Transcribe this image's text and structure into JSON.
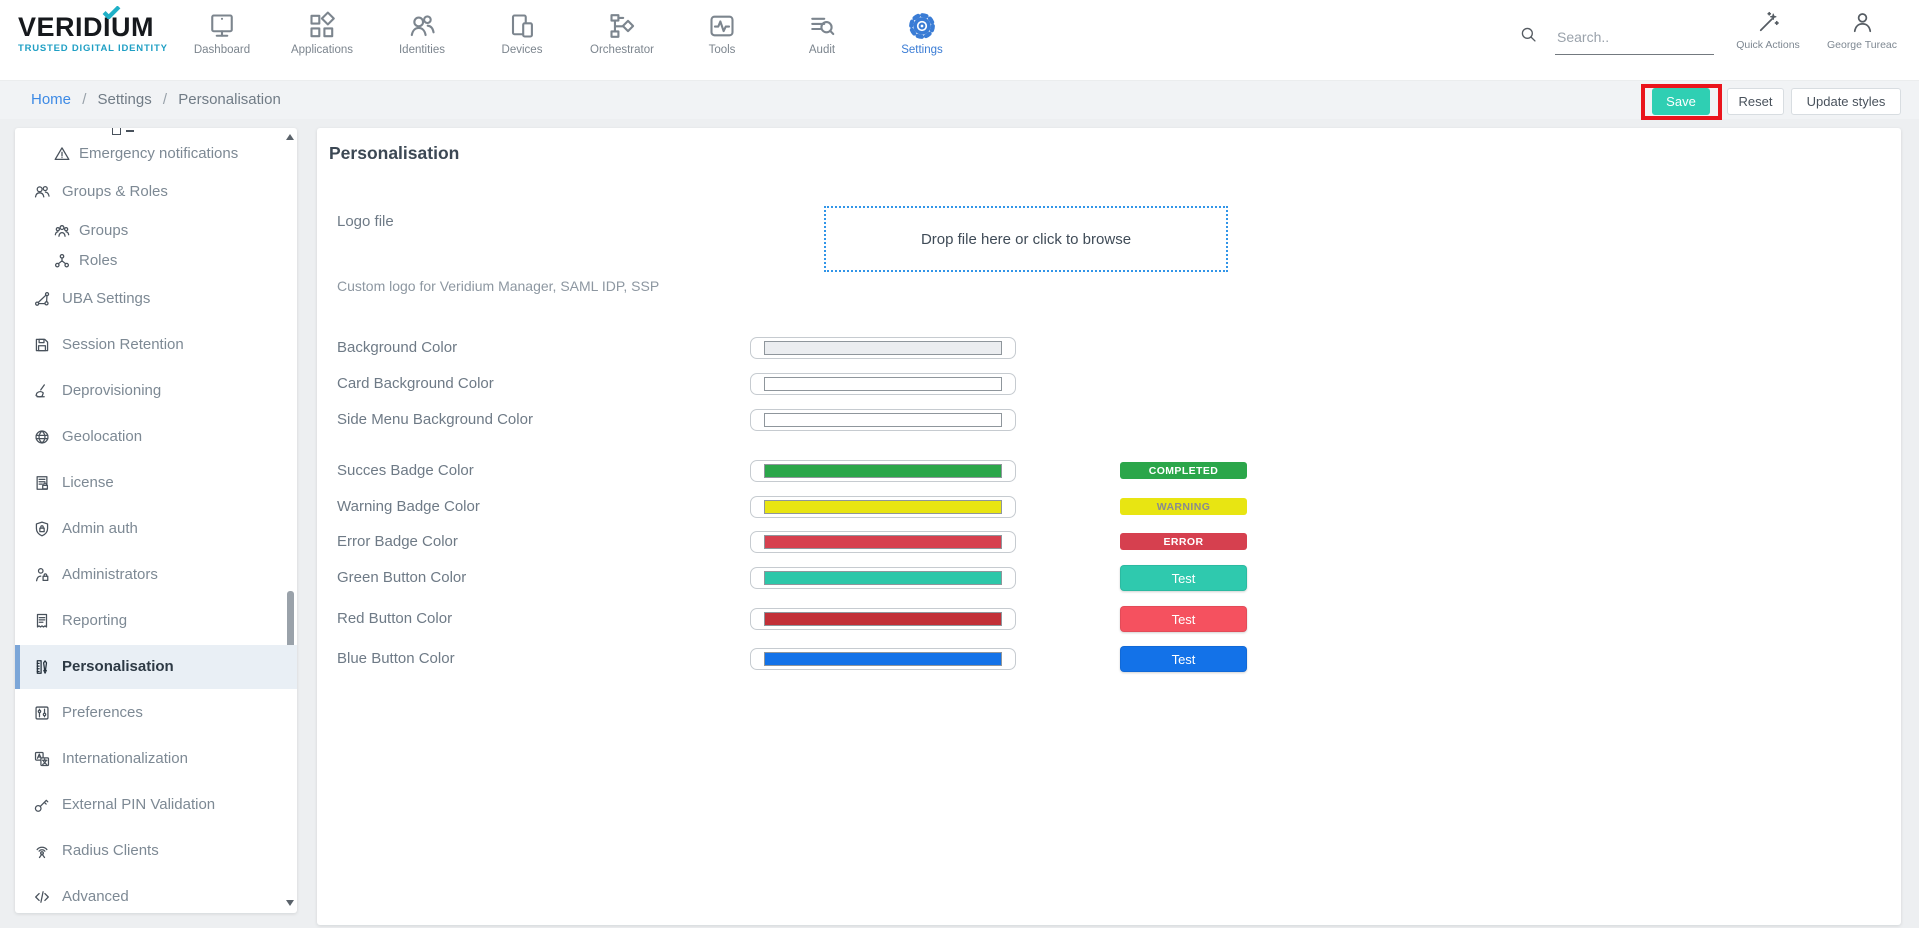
{
  "brand": {
    "name": "VERIDIUM",
    "tagline": "TRUSTED DIGITAL IDENTITY"
  },
  "navbar": {
    "items": [
      {
        "label": "Dashboard",
        "icon": "dashboard-icon",
        "active": false
      },
      {
        "label": "Applications",
        "icon": "applications-icon",
        "active": false
      },
      {
        "label": "Identities",
        "icon": "identities-icon",
        "active": false
      },
      {
        "label": "Devices",
        "icon": "devices-icon",
        "active": false
      },
      {
        "label": "Orchestrator",
        "icon": "orchestrator-icon",
        "active": false
      },
      {
        "label": "Tools",
        "icon": "tools-icon",
        "active": false
      },
      {
        "label": "Audit",
        "icon": "audit-icon",
        "active": false
      },
      {
        "label": "Settings",
        "icon": "settings-gear-icon",
        "active": true
      }
    ],
    "search_placeholder": "Search..",
    "quick_actions_label": "Quick Actions",
    "user_name": "George Tureac"
  },
  "breadcrumb": {
    "home": "Home",
    "separator": "/",
    "section": "Settings",
    "page": "Personalisation"
  },
  "toolbar": {
    "save_label": "Save",
    "reset_label": "Reset",
    "update_styles_label": "Update styles"
  },
  "sidebar": {
    "items": [
      {
        "label": "Emergency notifications",
        "icon": "warning-triangle-icon",
        "indent": true,
        "active": false
      },
      {
        "label": "Groups & Roles",
        "icon": "groups-roles-icon",
        "indent": false,
        "active": false
      },
      {
        "label": "Groups",
        "icon": "groups-icon",
        "indent": true,
        "active": false
      },
      {
        "label": "Roles",
        "icon": "roles-icon",
        "indent": true,
        "active": false
      },
      {
        "label": "UBA Settings",
        "icon": "uba-settings-icon",
        "indent": false,
        "active": false
      },
      {
        "label": "Session Retention",
        "icon": "session-retention-icon",
        "indent": false,
        "active": false
      },
      {
        "label": "Deprovisioning",
        "icon": "deprovisioning-icon",
        "indent": false,
        "active": false
      },
      {
        "label": "Geolocation",
        "icon": "geolocation-icon",
        "indent": false,
        "active": false
      },
      {
        "label": "License",
        "icon": "license-icon",
        "indent": false,
        "active": false
      },
      {
        "label": "Admin auth",
        "icon": "admin-auth-icon",
        "indent": false,
        "active": false
      },
      {
        "label": "Administrators",
        "icon": "administrators-icon",
        "indent": false,
        "active": false
      },
      {
        "label": "Reporting",
        "icon": "reporting-icon",
        "indent": false,
        "active": false
      },
      {
        "label": "Personalisation",
        "icon": "personalisation-icon",
        "indent": false,
        "active": true
      },
      {
        "label": "Preferences",
        "icon": "preferences-icon",
        "indent": false,
        "active": false
      },
      {
        "label": "Internationalization",
        "icon": "internationalization-icon",
        "indent": false,
        "active": false
      },
      {
        "label": "External PIN Validation",
        "icon": "external-pin-icon",
        "indent": false,
        "active": false
      },
      {
        "label": "Radius Clients",
        "icon": "radius-clients-icon",
        "indent": false,
        "active": false
      },
      {
        "label": "Advanced",
        "icon": "advanced-code-icon",
        "indent": false,
        "active": false
      }
    ]
  },
  "main": {
    "title": "Personalisation",
    "logo_file": {
      "label": "Logo file",
      "dropzone_text": "Drop file here or click to browse",
      "helper_text": "Custom logo for Veridium Manager, SAML IDP, SSP"
    },
    "color_rows": [
      {
        "label": "Background Color",
        "swatch_color": "#ebedf0"
      },
      {
        "label": "Card Background Color",
        "swatch_color": "#ffffff"
      },
      {
        "label": "Side Menu Background Color",
        "swatch_color": "#ffffff"
      },
      {
        "label": "Succes Badge Color",
        "swatch_color": "#2ba64a",
        "preview": {
          "kind": "badge",
          "text": "COMPLETED",
          "bg": "#2ba64a",
          "fg": "#ffffff"
        }
      },
      {
        "label": "Warning Badge Color",
        "swatch_color": "#e8e512",
        "preview": {
          "kind": "badge",
          "text": "WARNING",
          "bg": "#e8e512",
          "fg": "#898b8e"
        }
      },
      {
        "label": "Error Badge Color",
        "swatch_color": "#d6404f",
        "preview": {
          "kind": "badge",
          "text": "ERROR",
          "bg": "#d6404f",
          "fg": "#ffffff"
        }
      },
      {
        "label": "Green Button Color",
        "swatch_color": "#2dc7a9",
        "preview": {
          "kind": "button",
          "text": "Test",
          "bg": "#2fc9ae",
          "fg": "#ffffff"
        }
      },
      {
        "label": "Red Button Color",
        "swatch_color": "#c23038",
        "preview": {
          "kind": "button",
          "text": "Test",
          "bg": "#f5515f",
          "fg": "#ffffff"
        }
      },
      {
        "label": "Blue Button Color",
        "swatch_color": "#1372e8",
        "preview": {
          "kind": "button",
          "text": "Test",
          "bg": "#1372e8",
          "fg": "#ffffff"
        }
      }
    ]
  },
  "colors": {
    "accent_teal": "#2fcfb3",
    "active_blue": "#3a7cd5",
    "annotation_red": "#ea141c",
    "link_blue": "#3d8ae5"
  }
}
